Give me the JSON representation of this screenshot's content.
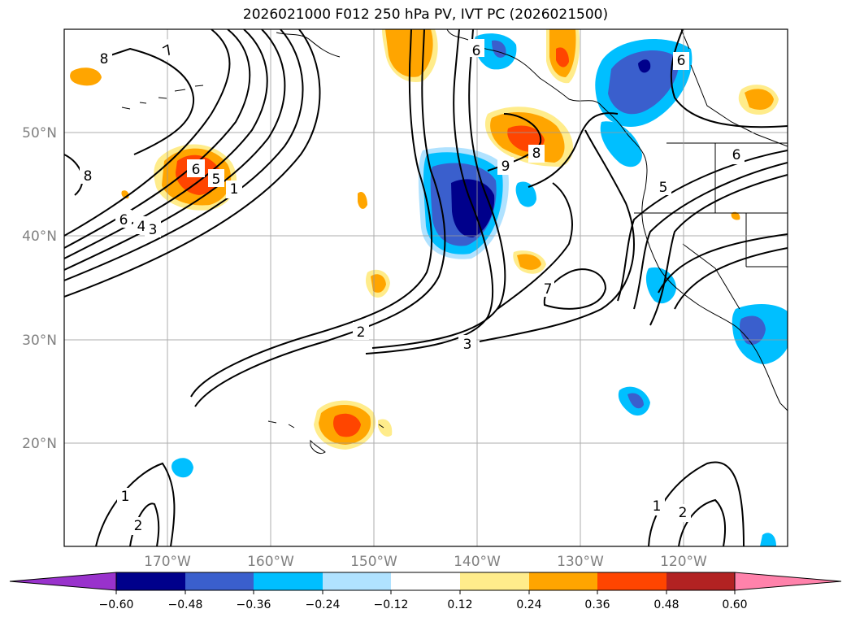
{
  "title": "2026021000 F012 250 hPa PV, IVT PC (2026021500)",
  "map": {
    "lat_ticks": [
      "50°N",
      "40°N",
      "30°N",
      "20°N"
    ],
    "lon_ticks": [
      "170°W",
      "160°W",
      "150°W",
      "140°W",
      "130°W",
      "120°W"
    ],
    "grid": true,
    "coastlines": true,
    "state_borders": true
  },
  "contour_labels": [
    "8",
    "7",
    "6",
    "8",
    "6",
    "4",
    "3",
    "5",
    "2",
    "1",
    "6",
    "8",
    "9",
    "7",
    "2",
    "3",
    "6",
    "5",
    "6",
    "1",
    "2",
    "1",
    "2"
  ],
  "colorbar": {
    "ticks": [
      "−0.60",
      "−0.48",
      "−0.36",
      "−0.24",
      "−0.12",
      "0.12",
      "0.24",
      "0.36",
      "0.48",
      "0.60"
    ],
    "colors": [
      "#9932cc",
      "#00008b",
      "#3a5fcd",
      "#00bfff",
      "#b0e2ff",
      "#ffffff",
      "#ffec8b",
      "#ffa500",
      "#ff4500",
      "#b22222",
      "#ff82ab"
    ],
    "extend": "both"
  }
}
